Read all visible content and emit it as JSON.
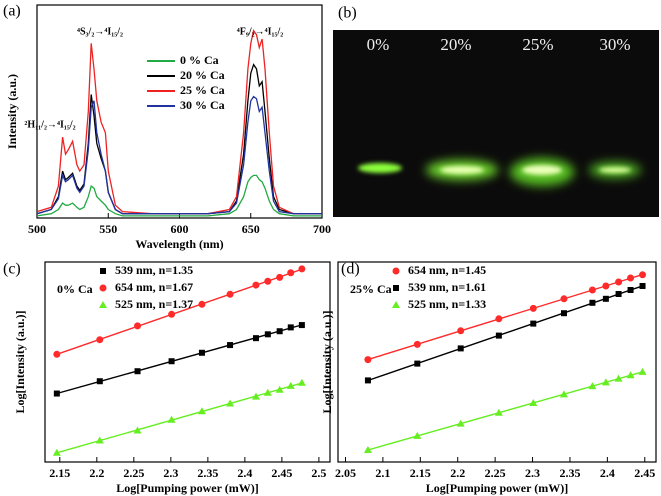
{
  "chart_data": [
    {
      "type": "line",
      "panel_label": "(a)",
      "x_label": "Wavelength (nm)",
      "y_label": "Intensity (a.u.)",
      "x": [
        500,
        510,
        515,
        518,
        520,
        522,
        525,
        528,
        530,
        533,
        536,
        538,
        540,
        542,
        545,
        548,
        550,
        555,
        560,
        580,
        600,
        620,
        635,
        640,
        645,
        648,
        650,
        652,
        654,
        656,
        658,
        660,
        663,
        666,
        670,
        680,
        700
      ],
      "series": [
        {
          "name": "0 % Ca",
          "color": "#22aa44",
          "values": [
            0.01,
            0.02,
            0.04,
            0.07,
            0.06,
            0.06,
            0.07,
            0.05,
            0.04,
            0.05,
            0.1,
            0.15,
            0.14,
            0.1,
            0.08,
            0.06,
            0.04,
            0.02,
            0.01,
            0.01,
            0.01,
            0.01,
            0.02,
            0.04,
            0.1,
            0.17,
            0.19,
            0.2,
            0.2,
            0.18,
            0.17,
            0.14,
            0.08,
            0.04,
            0.02,
            0.01,
            0.01
          ]
        },
        {
          "name": "20 % Ca",
          "color": "#000000",
          "values": [
            0.02,
            0.04,
            0.1,
            0.22,
            0.18,
            0.19,
            0.21,
            0.15,
            0.13,
            0.16,
            0.35,
            0.58,
            0.48,
            0.35,
            0.28,
            0.22,
            0.12,
            0.04,
            0.02,
            0.02,
            0.02,
            0.02,
            0.03,
            0.08,
            0.3,
            0.55,
            0.68,
            0.72,
            0.7,
            0.62,
            0.64,
            0.5,
            0.28,
            0.1,
            0.04,
            0.02,
            0.02
          ]
        },
        {
          "name": "25 % Ca",
          "color": "#ee2222",
          "values": [
            0.03,
            0.05,
            0.15,
            0.38,
            0.3,
            0.32,
            0.36,
            0.25,
            0.22,
            0.25,
            0.5,
            0.82,
            0.7,
            0.55,
            0.45,
            0.4,
            0.22,
            0.06,
            0.03,
            0.02,
            0.02,
            0.02,
            0.04,
            0.1,
            0.4,
            0.7,
            0.82,
            0.88,
            0.86,
            0.8,
            0.84,
            0.7,
            0.4,
            0.15,
            0.05,
            0.02,
            0.02
          ]
        },
        {
          "name": "30 % Ca",
          "color": "#2233a0",
          "values": [
            0.02,
            0.04,
            0.09,
            0.2,
            0.17,
            0.18,
            0.2,
            0.14,
            0.12,
            0.15,
            0.32,
            0.52,
            0.55,
            0.4,
            0.3,
            0.22,
            0.12,
            0.04,
            0.02,
            0.02,
            0.02,
            0.02,
            0.03,
            0.07,
            0.25,
            0.45,
            0.55,
            0.57,
            0.56,
            0.5,
            0.52,
            0.4,
            0.22,
            0.08,
            0.03,
            0.02,
            0.02
          ]
        }
      ],
      "xlim": [
        500,
        700
      ],
      "xticks": [
        500,
        550,
        600,
        650,
        700
      ],
      "ylim": [
        0,
        1
      ],
      "annotations": [
        "²H₁₁/₂→⁴I₁₅/₂",
        "⁴S₃/₂→⁴I₁₅/₂",
        "⁴F₉/₂→⁴I₁₅/₂"
      ],
      "legend": "upper center"
    },
    {
      "type": "image",
      "panel_label": "(b)",
      "labels": [
        "0%",
        "20%",
        "25%",
        "30%"
      ]
    },
    {
      "type": "scatter",
      "panel_label": "(c)",
      "annotation": "0% Ca",
      "x_label": "Log[Pumping power (mW)]",
      "y_label": "Log[Intensity (a.u.)]",
      "x": [
        2.146,
        2.204,
        2.255,
        2.301,
        2.342,
        2.38,
        2.415,
        2.431,
        2.447,
        2.462,
        2.477
      ],
      "series": [
        {
          "name": "539 nm, n=1.35",
          "color": "#000000",
          "marker": "square",
          "values": [
            0.445,
            0.525,
            0.59,
            0.655,
            0.71,
            0.76,
            0.805,
            0.83,
            0.85,
            0.875,
            0.89
          ]
        },
        {
          "name": "654 nm, n=1.67",
          "color": "#ff2a2a",
          "marker": "circle",
          "values": [
            0.7,
            0.795,
            0.885,
            0.96,
            1.025,
            1.09,
            1.15,
            1.175,
            1.2,
            1.23,
            1.255
          ]
        },
        {
          "name": "525 nm, n=1.37",
          "color": "#66ee22",
          "marker": "triangle",
          "values": [
            0.06,
            0.14,
            0.205,
            0.275,
            0.33,
            0.38,
            0.425,
            0.45,
            0.47,
            0.495,
            0.515
          ]
        }
      ],
      "xlim": [
        2.13,
        2.515
      ],
      "xticks": [
        2.15,
        2.2,
        2.25,
        2.3,
        2.35,
        2.4,
        2.45,
        2.5
      ],
      "ylim": [
        0,
        1.3
      ],
      "fit": true,
      "legend": "upper left"
    },
    {
      "type": "scatter",
      "panel_label": "(d)",
      "annotation": "25% Ca",
      "x_label": "Log[Pumping power (mW)]",
      "y_label": "Log[Intensity (a.u.)]",
      "x": [
        2.08,
        2.146,
        2.204,
        2.255,
        2.301,
        2.342,
        2.38,
        2.398,
        2.415,
        2.431,
        2.447
      ],
      "series": [
        {
          "name": "654 nm, n=1.45",
          "color": "#ff2a2a",
          "marker": "circle",
          "values": [
            0.64,
            0.735,
            0.82,
            0.895,
            0.96,
            1.02,
            1.075,
            1.1,
            1.125,
            1.15,
            1.17
          ]
        },
        {
          "name": "539 nm, n=1.61",
          "color": "#000000",
          "marker": "square",
          "values": [
            0.51,
            0.615,
            0.71,
            0.79,
            0.865,
            0.93,
            0.995,
            1.02,
            1.05,
            1.075,
            1.1
          ]
        },
        {
          "name": "525 nm, n=1.33",
          "color": "#66ee22",
          "marker": "triangle",
          "values": [
            0.075,
            0.163,
            0.24,
            0.308,
            0.369,
            0.423,
            0.474,
            0.498,
            0.521,
            0.542,
            0.563
          ]
        }
      ],
      "xlim": [
        2.04,
        2.465
      ],
      "xticks": [
        2.05,
        2.1,
        2.15,
        2.2,
        2.25,
        2.3,
        2.35,
        2.4,
        2.45
      ],
      "ylim": [
        0,
        1.25
      ],
      "fit": true,
      "legend": "upper left"
    }
  ]
}
